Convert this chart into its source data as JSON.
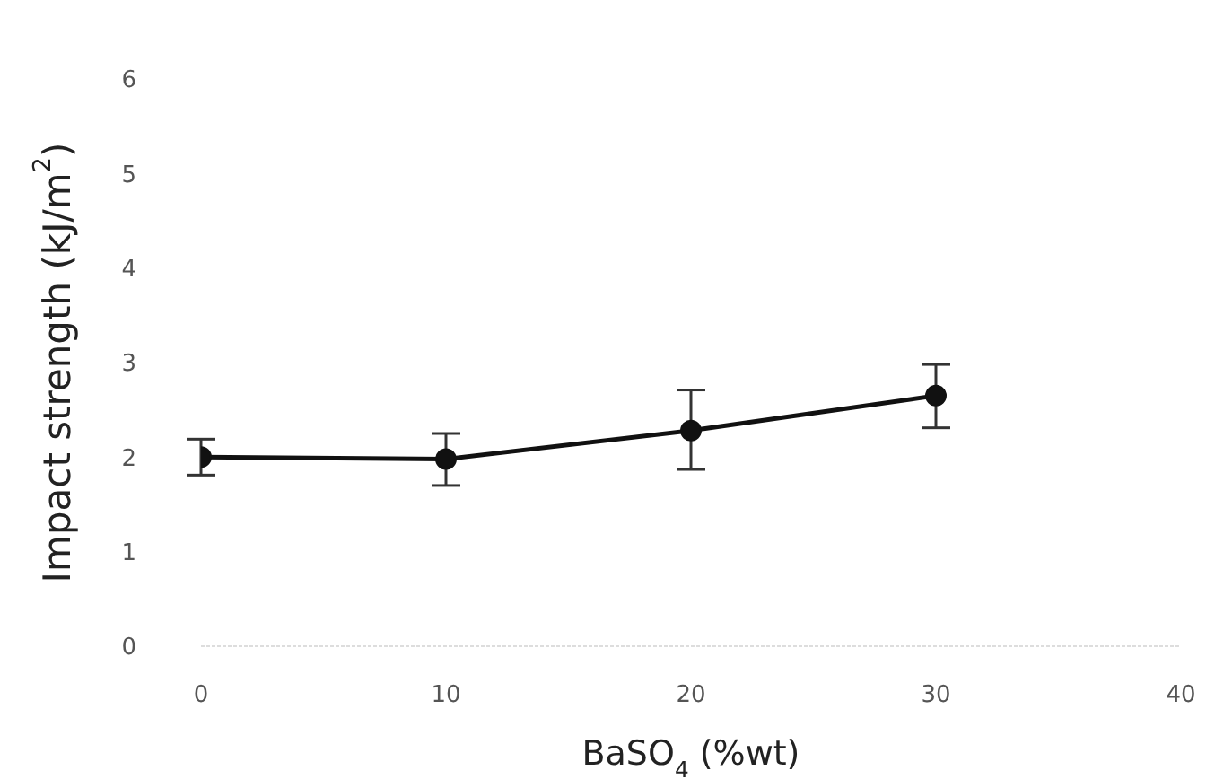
{
  "chart_data": {
    "type": "line",
    "xlabel": "BaSO$_{4}$ (%wt)",
    "ylabel": "Impact strength (kJ/m$^{2}$)",
    "x": [
      0,
      10,
      20,
      30
    ],
    "series": [
      {
        "color": "#111111",
        "values": [
          2.0,
          1.98,
          2.28,
          2.65
        ],
        "errors": [
          0.19,
          [
            1.7,
            2.25
          ],
          [
            1.87,
            2.71
          ],
          [
            2.31,
            2.98
          ]
        ]
      }
    ],
    "xlim": [
      0,
      40
    ],
    "xticks": [
      0,
      10,
      20,
      30,
      40
    ],
    "ylim": [
      0,
      6
    ],
    "yticks": [
      0,
      1,
      2,
      3,
      4,
      5,
      6
    ],
    "grid": false,
    "marker": "circle",
    "line_style": "solid"
  }
}
